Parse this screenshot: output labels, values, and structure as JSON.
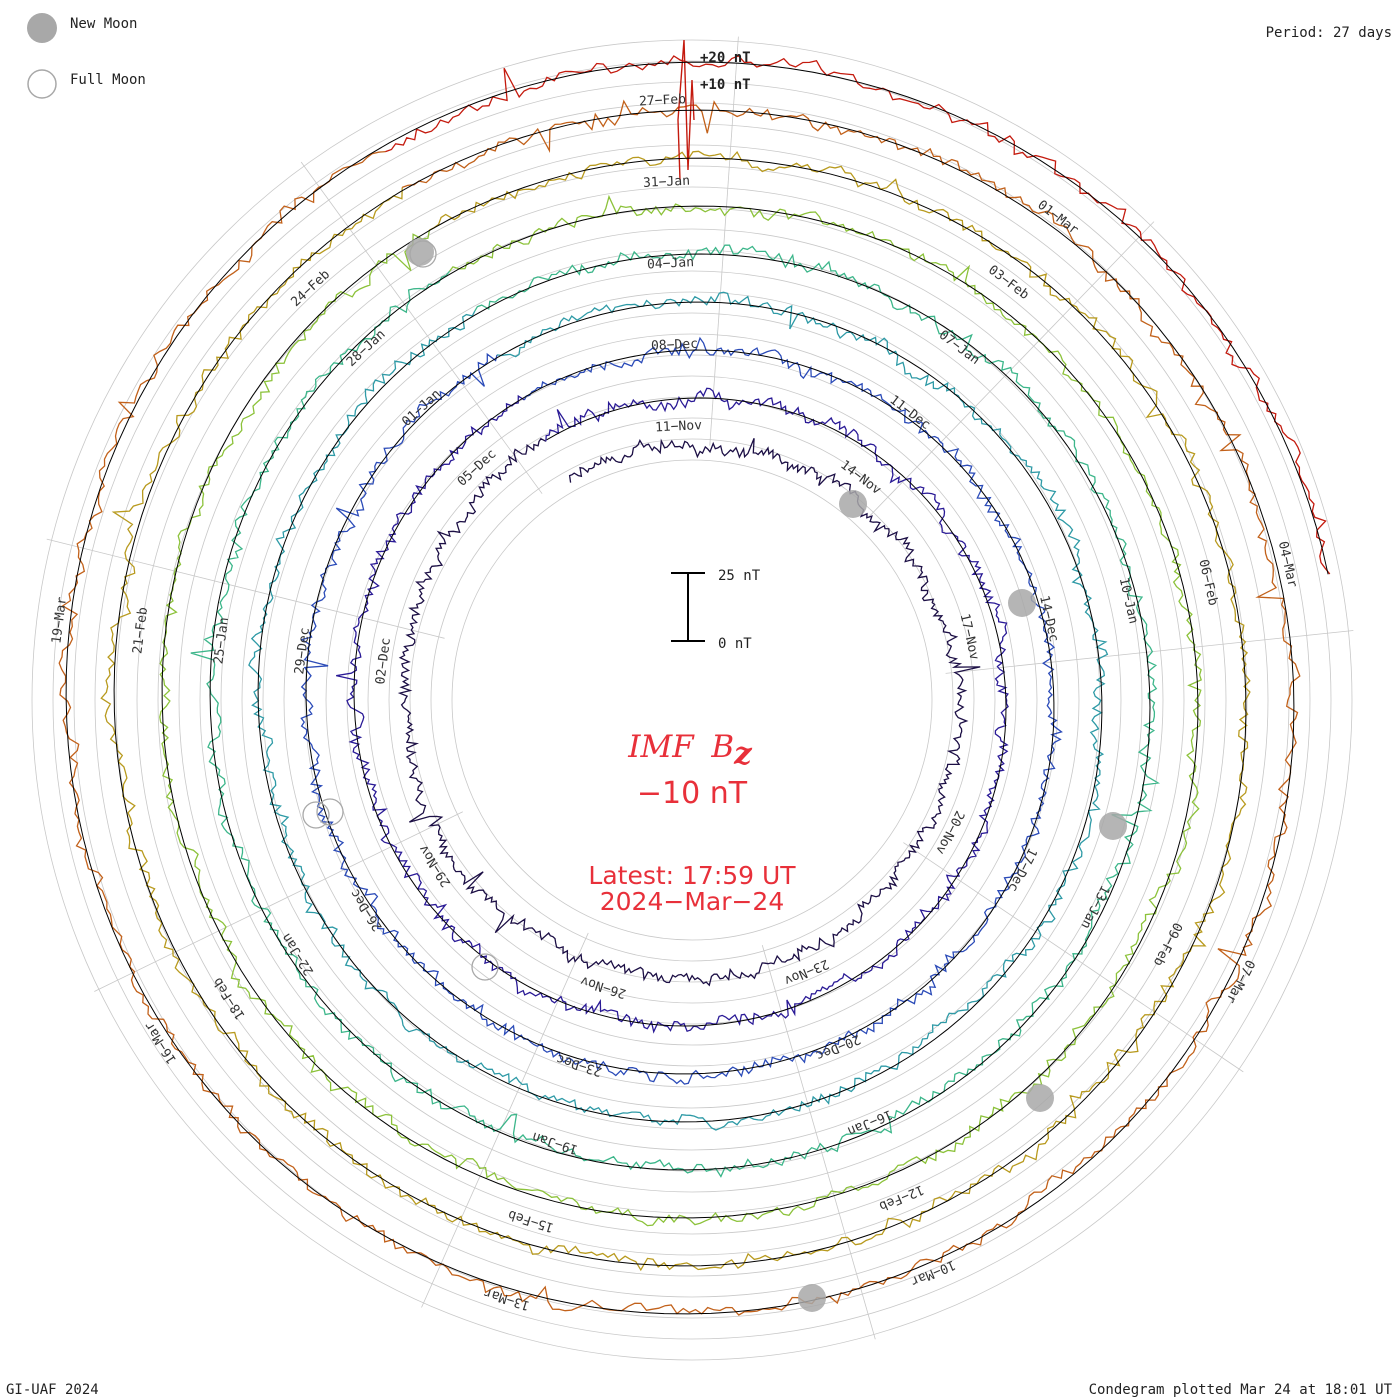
{
  "legend": {
    "new_moon": "New Moon",
    "full_moon": "Full Moon"
  },
  "period": "Period: 27 days",
  "credit": "GI-UAF 2024",
  "plotted": "Condegram plotted Mar 24 at 18:01 UT",
  "center": {
    "title": "IMF",
    "symbol": "B",
    "subscript": "z",
    "value_label": "−10 nT",
    "latest": "Latest: 17:59 UT",
    "date": "2024−Mar−24"
  },
  "scale_bar": {
    "top_label": "25 nT",
    "bottom_label": "0 nT"
  },
  "spike_labels": {
    "plus20": "+20 nT",
    "plus10": "+10 nT"
  },
  "colors": {
    "ring1": "#1c0f45",
    "ring2": "#2a1a96",
    "ring3": "#2b4bb8",
    "ring4": "#2e9aa6",
    "ring5": "#3cb68a",
    "ring6": "#8cc23a",
    "ring7": "#b89a1e",
    "ring8": "#c2611a",
    "ring9": "#c41a0e",
    "center_text": "#e8303a",
    "moon": "#a8a8a8",
    "grid": "#c8c8c8"
  },
  "chart_data": {
    "type": "condegram",
    "title": "IMF Bz",
    "period_days": 27,
    "scale": {
      "min_nT": 0,
      "max_nT": 25
    },
    "rings": [
      {
        "name": "ring1",
        "dates": [
          "11−Nov",
          "14−Nov",
          "17−Nov",
          "20−Nov",
          "23−Nov",
          "26−Nov",
          "29−Nov",
          "02−Dec",
          "05−Dec"
        ]
      },
      {
        "name": "ring2",
        "dates": [
          "08−Dec",
          "11−Dec",
          "14−Dec",
          "17−Dec",
          "20−Dec",
          "23−Dec",
          "26−Dec",
          "29−Dec",
          "01−Jan"
        ]
      },
      {
        "name": "ring3",
        "dates": [
          "04−Jan",
          "07−Jan",
          "10−Jan",
          "13−Jan",
          "16−Jan",
          "19−Jan",
          "22−Jan",
          "25−Jan",
          "28−Jan"
        ]
      },
      {
        "name": "ring4",
        "dates": [
          "31−Jan",
          "03−Feb",
          "06−Feb",
          "09−Feb",
          "12−Feb",
          "15−Feb",
          "18−Feb",
          "21−Feb",
          "24−Feb"
        ]
      },
      {
        "name": "ring5",
        "dates": [
          "27−Feb",
          "01−Mar",
          "04−Mar",
          "07−Mar",
          "10−Mar",
          "13−Mar",
          "16−Mar",
          "19−Mar"
        ]
      }
    ],
    "new_moon_count": 6,
    "full_moon_count": 4
  }
}
